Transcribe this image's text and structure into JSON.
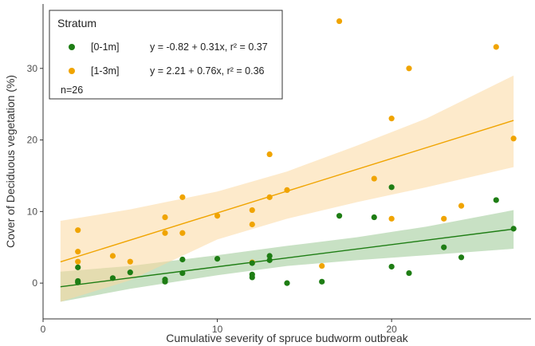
{
  "chart_data": {
    "type": "scatter",
    "xlabel": "Cumulative severity of spruce budworm outbreak",
    "ylabel": "Cover of Deciduous vegetation (%)",
    "xlim": [
      0,
      28
    ],
    "ylim": [
      -5,
      39
    ],
    "xticks": [
      0,
      10,
      20
    ],
    "yticks": [
      0,
      10,
      20,
      30
    ],
    "grid": false,
    "legend": {
      "title": "Stratum",
      "placement": "top-left",
      "note": "n=26"
    },
    "series": [
      {
        "name": "[0-1m]",
        "color": "#1e7d14",
        "band_color": "#86bd7c",
        "equation": "y = -0.82 + 0.31x, r² = 0.37",
        "fit": {
          "intercept": -0.82,
          "slope": 0.31,
          "x_range": [
            1,
            27
          ]
        },
        "ci_upper": [
          [
            1,
            1.6
          ],
          [
            5,
            2.4
          ],
          [
            10,
            3.9
          ],
          [
            14,
            5.2
          ],
          [
            18,
            6.4
          ],
          [
            22,
            7.9
          ],
          [
            27,
            10.2
          ]
        ],
        "ci_lower": [
          [
            1,
            -2.6
          ],
          [
            5,
            -0.8
          ],
          [
            10,
            1.1
          ],
          [
            14,
            2.4
          ],
          [
            18,
            3.2
          ],
          [
            22,
            3.9
          ],
          [
            27,
            4.8
          ]
        ],
        "points": [
          [
            2,
            0.1
          ],
          [
            2,
            0.3
          ],
          [
            2,
            2.2
          ],
          [
            4,
            0.7
          ],
          [
            5,
            1.5
          ],
          [
            7,
            0.2
          ],
          [
            7,
            0.5
          ],
          [
            8,
            1.4
          ],
          [
            8,
            3.3
          ],
          [
            10,
            3.4
          ],
          [
            12,
            0.8
          ],
          [
            12,
            1.2
          ],
          [
            12,
            2.8
          ],
          [
            13,
            3.2
          ],
          [
            13,
            3.8
          ],
          [
            14,
            0.0
          ],
          [
            16,
            0.2
          ],
          [
            17,
            9.4
          ],
          [
            19,
            9.2
          ],
          [
            20,
            13.4
          ],
          [
            20,
            2.3
          ],
          [
            21,
            1.4
          ],
          [
            23,
            5.0
          ],
          [
            24,
            3.6
          ],
          [
            26,
            11.6
          ],
          [
            27,
            7.6
          ]
        ]
      },
      {
        "name": "[1-3m]",
        "color": "#f0a400",
        "band_color": "#fbd8a0",
        "equation": "y = 2.21 + 0.76x, r² = 0.36",
        "fit": {
          "intercept": 2.21,
          "slope": 0.76,
          "x_range": [
            1,
            27
          ]
        },
        "ci_upper": [
          [
            1,
            8.7
          ],
          [
            5,
            10.3
          ],
          [
            10,
            12.8
          ],
          [
            14,
            15.6
          ],
          [
            18,
            19.2
          ],
          [
            22,
            23.0
          ],
          [
            27,
            29.0
          ]
        ],
        "ci_lower": [
          [
            1,
            -2.6
          ],
          [
            5,
            0.4
          ],
          [
            10,
            6.1
          ],
          [
            14,
            9.0
          ],
          [
            18,
            11.3
          ],
          [
            22,
            13.4
          ],
          [
            27,
            16.2
          ]
        ],
        "points": [
          [
            2,
            7.4
          ],
          [
            2,
            4.4
          ],
          [
            2,
            3.0
          ],
          [
            4,
            3.8
          ],
          [
            5,
            3.0
          ],
          [
            7,
            9.2
          ],
          [
            7,
            7.0
          ],
          [
            8,
            12.0
          ],
          [
            8,
            7.0
          ],
          [
            10,
            9.4
          ],
          [
            12,
            10.2
          ],
          [
            12,
            8.2
          ],
          [
            13,
            12.0
          ],
          [
            13,
            18.0
          ],
          [
            14,
            13.0
          ],
          [
            16,
            2.4
          ],
          [
            17,
            36.6
          ],
          [
            19,
            14.6
          ],
          [
            20,
            23.0
          ],
          [
            20,
            9.0
          ],
          [
            21,
            30.0
          ],
          [
            23,
            9.0
          ],
          [
            24,
            10.8
          ],
          [
            26,
            33.0
          ],
          [
            27,
            20.2
          ],
          [
            12,
            2.9
          ]
        ]
      }
    ]
  }
}
